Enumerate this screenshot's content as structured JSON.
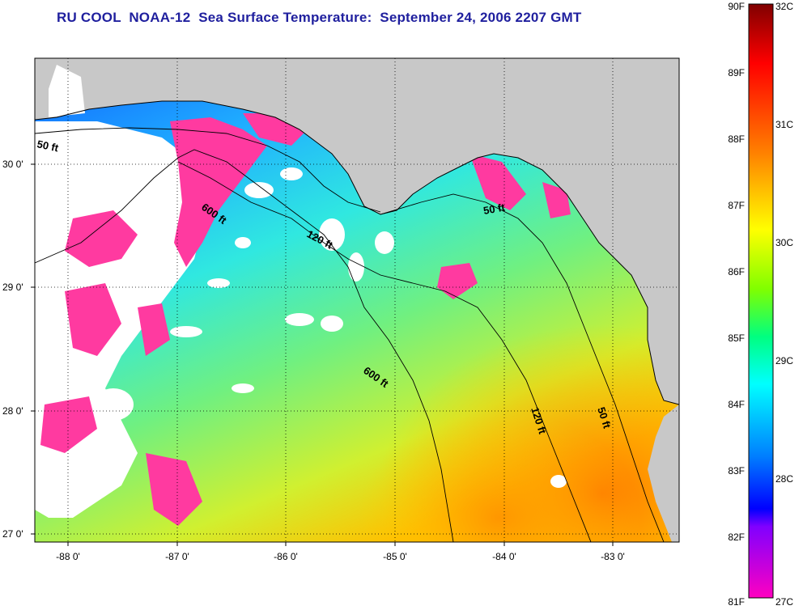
{
  "title": "RU COOL  NOAA-12  Sea Surface Temperature:  September 24, 2006 2207 GMT",
  "map": {
    "lon_ticks": [
      "-88 0'",
      "-87 0'",
      "-86 0'",
      "-85 0'",
      "-84 0'",
      "-83 0'"
    ],
    "lat_ticks": [
      "30 0'",
      "29 0'",
      "28 0'",
      "27 0'"
    ],
    "isobaths": [
      {
        "label": "50 ft"
      },
      {
        "label": "600 ft"
      },
      {
        "label": "120 ft"
      },
      {
        "label": "600 ft"
      },
      {
        "label": "50 ft"
      },
      {
        "label": "120 ft"
      },
      {
        "label": "50 ft"
      }
    ],
    "colors": {
      "land": "#c8c8c8",
      "cloud_mask": "#ffffff",
      "frame": "#000000"
    }
  },
  "colorbar": {
    "fahrenheit_labels": [
      "90F",
      "89F",
      "88F",
      "87F",
      "86F",
      "85F",
      "84F",
      "83F",
      "82F",
      "81F"
    ],
    "celsius_labels": [
      "32C",
      "31C",
      "30C",
      "29C",
      "28C",
      "27C"
    ],
    "colors": [
      "#800000",
      "#ff0000",
      "#ff8000",
      "#ffff00",
      "#80ff00",
      "#00ff80",
      "#00ffff",
      "#0080ff",
      "#0000ff",
      "#8000ff",
      "#ff00c0"
    ]
  }
}
